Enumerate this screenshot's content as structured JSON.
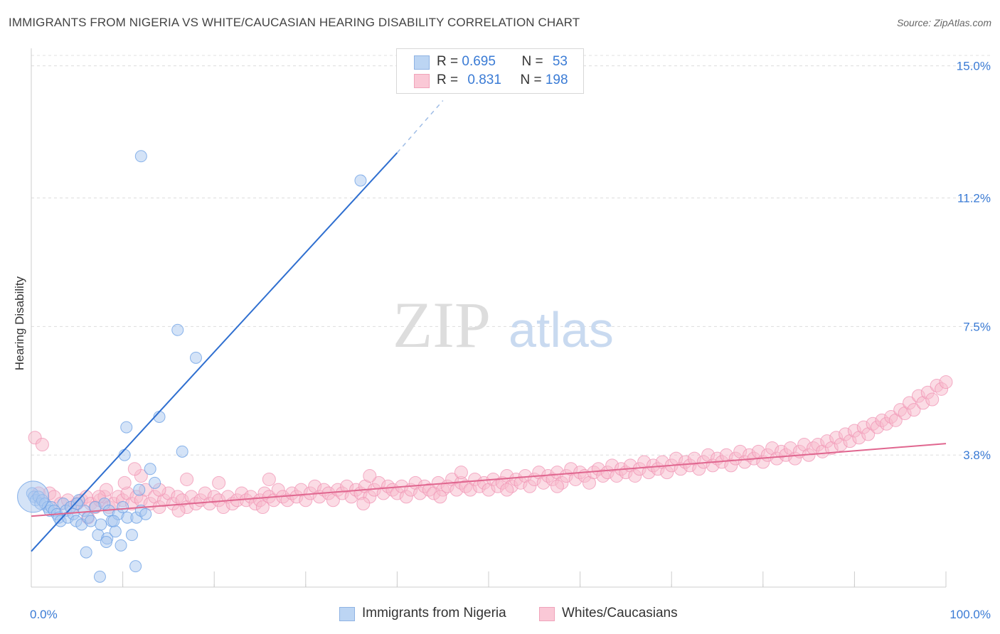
{
  "header": {
    "title": "IMMIGRANTS FROM NIGERIA VS WHITE/CAUCASIAN HEARING DISABILITY CORRELATION CHART",
    "source": "Source: ZipAtlas.com"
  },
  "watermark": {
    "part1": "ZIP",
    "part2": "atlas"
  },
  "legend": {
    "rows": [
      {
        "r_label": "R = ",
        "r_value": "0.695",
        "n_label": "N = ",
        "n_value": "53",
        "color": "#a9c8f0"
      },
      {
        "r_label": "R = ",
        "r_value": "0.831",
        "n_label": "N = ",
        "n_value": "198",
        "color": "#f7b9cb"
      }
    ]
  },
  "bottom_legend": {
    "items": [
      {
        "label": "Immigrants from Nigeria",
        "color": "#a9c8f0"
      },
      {
        "label": "Whites/Caucasians",
        "color": "#f7b9cb"
      }
    ]
  },
  "chart_data": {
    "type": "scatter",
    "title": "IMMIGRANTS FROM NIGERIA VS WHITE/CAUCASIAN HEARING DISABILITY CORRELATION CHART",
    "xlabel": "",
    "ylabel": "Hearing Disability",
    "xlim": [
      0,
      100
    ],
    "ylim": [
      0,
      15.3
    ],
    "x_tick_labels": [
      "0.0%",
      "100.0%"
    ],
    "y_ticks": [
      3.8,
      7.5,
      11.2,
      15.0
    ],
    "y_tick_labels": [
      "3.8%",
      "7.5%",
      "11.2%",
      "15.0%"
    ],
    "grid": true,
    "legend_position": "top-center",
    "series": [
      {
        "name": "Immigrants from Nigeria",
        "color": "#6fa3e6",
        "fill": "#a9c8f0",
        "trend": {
          "x": [
            0,
            40
          ],
          "y": [
            1.03,
            12.5
          ],
          "dashed_extension_to": [
            45,
            14.0
          ],
          "color": "#2f6fd0"
        },
        "points": [
          [
            0.1,
            2.7
          ],
          [
            0.3,
            2.6
          ],
          [
            0.5,
            2.5
          ],
          [
            0.8,
            2.6
          ],
          [
            1.0,
            2.4
          ],
          [
            1.2,
            2.5
          ],
          [
            1.5,
            2.4
          ],
          [
            1.8,
            2.3
          ],
          [
            2.0,
            2.2
          ],
          [
            2.2,
            2.3
          ],
          [
            2.5,
            2.2
          ],
          [
            2.8,
            2.1
          ],
          [
            3.0,
            2.0
          ],
          [
            3.2,
            1.9
          ],
          [
            3.5,
            2.4
          ],
          [
            3.8,
            2.2
          ],
          [
            4.0,
            2.0
          ],
          [
            4.3,
            2.3
          ],
          [
            4.6,
            2.1
          ],
          [
            4.9,
            1.9
          ],
          [
            5.2,
            2.5
          ],
          [
            5.5,
            1.8
          ],
          [
            5.8,
            2.2
          ],
          [
            6.2,
            2.0
          ],
          [
            6.5,
            1.9
          ],
          [
            7.0,
            2.3
          ],
          [
            7.3,
            1.5
          ],
          [
            7.6,
            1.8
          ],
          [
            8.0,
            2.4
          ],
          [
            8.3,
            1.4
          ],
          [
            8.5,
            2.2
          ],
          [
            8.8,
            1.9
          ],
          [
            9.2,
            1.6
          ],
          [
            9.5,
            2.1
          ],
          [
            9.8,
            1.2
          ],
          [
            10.0,
            2.3
          ],
          [
            10.5,
            2.0
          ],
          [
            11.0,
            1.5
          ],
          [
            11.5,
            2.0
          ],
          [
            12.0,
            2.2
          ],
          [
            6.0,
            1.0
          ],
          [
            7.5,
            0.3
          ],
          [
            8.2,
            1.3
          ],
          [
            9.0,
            1.9
          ],
          [
            10.2,
            3.8
          ],
          [
            10.4,
            4.6
          ],
          [
            11.8,
            2.8
          ],
          [
            12.5,
            2.1
          ],
          [
            13.5,
            3.0
          ],
          [
            16.5,
            3.9
          ],
          [
            18.0,
            6.6
          ],
          [
            14.0,
            4.9
          ],
          [
            11.4,
            0.6
          ],
          [
            12.0,
            12.4
          ],
          [
            16.0,
            7.4
          ],
          [
            36.0,
            11.7
          ],
          [
            13.0,
            3.4
          ],
          [
            5.0,
            2.4
          ]
        ],
        "large_point": [
          0.2,
          2.6
        ]
      },
      {
        "name": "Whites/Caucasians",
        "color": "#ef8fb0",
        "fill": "#f7b9cb",
        "trend": {
          "x": [
            0,
            100
          ],
          "y": [
            2.04,
            4.13
          ],
          "color": "#e0668f"
        },
        "points": [
          [
            0.4,
            4.3
          ],
          [
            1.2,
            4.1
          ],
          [
            2.0,
            2.7
          ],
          [
            2.5,
            2.6
          ],
          [
            3.2,
            2.4
          ],
          [
            4.0,
            2.5
          ],
          [
            4.5,
            2.3
          ],
          [
            5.0,
            2.4
          ],
          [
            5.5,
            2.5
          ],
          [
            6.0,
            2.6
          ],
          [
            6.5,
            2.4
          ],
          [
            7.0,
            2.3
          ],
          [
            7.5,
            2.5
          ],
          [
            8.0,
            2.6
          ],
          [
            8.5,
            2.3
          ],
          [
            9.0,
            2.4
          ],
          [
            9.5,
            2.6
          ],
          [
            10.0,
            2.5
          ],
          [
            10.5,
            2.7
          ],
          [
            11.0,
            2.4
          ],
          [
            11.5,
            2.6
          ],
          [
            12.0,
            2.5
          ],
          [
            12.5,
            2.8
          ],
          [
            13.0,
            2.4
          ],
          [
            13.5,
            2.6
          ],
          [
            14.0,
            2.3
          ],
          [
            14.5,
            2.5
          ],
          [
            15.0,
            2.7
          ],
          [
            15.5,
            2.4
          ],
          [
            16.0,
            2.6
          ],
          [
            16.5,
            2.5
          ],
          [
            17.0,
            2.3
          ],
          [
            17.5,
            2.6
          ],
          [
            18.0,
            2.4
          ],
          [
            18.5,
            2.5
          ],
          [
            19.0,
            2.7
          ],
          [
            19.5,
            2.4
          ],
          [
            20.0,
            2.6
          ],
          [
            20.5,
            2.5
          ],
          [
            21.0,
            2.3
          ],
          [
            21.5,
            2.6
          ],
          [
            22.0,
            2.4
          ],
          [
            22.5,
            2.5
          ],
          [
            23.0,
            2.7
          ],
          [
            23.5,
            2.5
          ],
          [
            24.0,
            2.6
          ],
          [
            24.5,
            2.4
          ],
          [
            25.0,
            2.5
          ],
          [
            25.5,
            2.7
          ],
          [
            26.0,
            2.6
          ],
          [
            26.5,
            2.5
          ],
          [
            27.0,
            2.8
          ],
          [
            27.5,
            2.6
          ],
          [
            28.0,
            2.5
          ],
          [
            28.5,
            2.7
          ],
          [
            29.0,
            2.6
          ],
          [
            29.5,
            2.8
          ],
          [
            30.0,
            2.5
          ],
          [
            30.5,
            2.7
          ],
          [
            31.0,
            2.9
          ],
          [
            31.5,
            2.6
          ],
          [
            32.0,
            2.8
          ],
          [
            32.5,
            2.7
          ],
          [
            33.0,
            2.5
          ],
          [
            33.5,
            2.8
          ],
          [
            34.0,
            2.7
          ],
          [
            34.5,
            2.9
          ],
          [
            35.0,
            2.6
          ],
          [
            35.5,
            2.8
          ],
          [
            36.0,
            2.7
          ],
          [
            36.5,
            2.9
          ],
          [
            37.0,
            2.6
          ],
          [
            37.5,
            2.8
          ],
          [
            38.0,
            3.0
          ],
          [
            38.5,
            2.7
          ],
          [
            39.0,
            2.9
          ],
          [
            39.5,
            2.8
          ],
          [
            40.0,
            2.7
          ],
          [
            40.5,
            2.9
          ],
          [
            41.0,
            2.6
          ],
          [
            41.5,
            2.8
          ],
          [
            42.0,
            3.0
          ],
          [
            42.5,
            2.7
          ],
          [
            43.0,
            2.9
          ],
          [
            43.5,
            2.8
          ],
          [
            44.0,
            2.7
          ],
          [
            44.5,
            3.0
          ],
          [
            45.0,
            2.8
          ],
          [
            45.5,
            2.9
          ],
          [
            46.0,
            3.1
          ],
          [
            46.5,
            2.8
          ],
          [
            47.0,
            3.0
          ],
          [
            47.5,
            2.9
          ],
          [
            48.0,
            2.8
          ],
          [
            48.5,
            3.1
          ],
          [
            49.0,
            2.9
          ],
          [
            49.5,
            3.0
          ],
          [
            50.0,
            2.8
          ],
          [
            50.5,
            3.1
          ],
          [
            51.0,
            2.9
          ],
          [
            51.5,
            3.0
          ],
          [
            52.0,
            3.2
          ],
          [
            52.5,
            2.9
          ],
          [
            53.0,
            3.1
          ],
          [
            53.5,
            3.0
          ],
          [
            54.0,
            3.2
          ],
          [
            54.5,
            2.9
          ],
          [
            55.0,
            3.1
          ],
          [
            55.5,
            3.3
          ],
          [
            56.0,
            3.0
          ],
          [
            56.5,
            3.2
          ],
          [
            57.0,
            3.1
          ],
          [
            57.5,
            3.3
          ],
          [
            58.0,
            3.0
          ],
          [
            58.5,
            3.2
          ],
          [
            59.0,
            3.4
          ],
          [
            59.5,
            3.1
          ],
          [
            60.0,
            3.3
          ],
          [
            60.5,
            3.2
          ],
          [
            61.0,
            3.0
          ],
          [
            61.5,
            3.3
          ],
          [
            62.0,
            3.4
          ],
          [
            62.5,
            3.2
          ],
          [
            63.0,
            3.3
          ],
          [
            63.5,
            3.5
          ],
          [
            64.0,
            3.2
          ],
          [
            64.5,
            3.4
          ],
          [
            65.0,
            3.3
          ],
          [
            65.5,
            3.5
          ],
          [
            66.0,
            3.2
          ],
          [
            66.5,
            3.4
          ],
          [
            67.0,
            3.6
          ],
          [
            67.5,
            3.3
          ],
          [
            68.0,
            3.5
          ],
          [
            68.5,
            3.4
          ],
          [
            69.0,
            3.6
          ],
          [
            69.5,
            3.3
          ],
          [
            70.0,
            3.5
          ],
          [
            70.5,
            3.7
          ],
          [
            71.0,
            3.4
          ],
          [
            71.5,
            3.6
          ],
          [
            72.0,
            3.5
          ],
          [
            72.5,
            3.7
          ],
          [
            73.0,
            3.4
          ],
          [
            73.5,
            3.6
          ],
          [
            74.0,
            3.8
          ],
          [
            74.5,
            3.5
          ],
          [
            75.0,
            3.7
          ],
          [
            75.5,
            3.6
          ],
          [
            76.0,
            3.8
          ],
          [
            76.5,
            3.5
          ],
          [
            77.0,
            3.7
          ],
          [
            77.5,
            3.9
          ],
          [
            78.0,
            3.6
          ],
          [
            78.5,
            3.8
          ],
          [
            79.0,
            3.7
          ],
          [
            79.5,
            3.9
          ],
          [
            80.0,
            3.6
          ],
          [
            80.5,
            3.8
          ],
          [
            81.0,
            4.0
          ],
          [
            81.5,
            3.7
          ],
          [
            82.0,
            3.9
          ],
          [
            82.5,
            3.8
          ],
          [
            83.0,
            4.0
          ],
          [
            83.5,
            3.7
          ],
          [
            84.0,
            3.9
          ],
          [
            84.5,
            4.1
          ],
          [
            85.0,
            3.8
          ],
          [
            85.5,
            4.0
          ],
          [
            86.0,
            4.1
          ],
          [
            86.5,
            3.9
          ],
          [
            87.0,
            4.2
          ],
          [
            87.5,
            4.0
          ],
          [
            88.0,
            4.3
          ],
          [
            88.5,
            4.1
          ],
          [
            89.0,
            4.4
          ],
          [
            89.5,
            4.2
          ],
          [
            90.0,
            4.5
          ],
          [
            90.5,
            4.3
          ],
          [
            91.0,
            4.6
          ],
          [
            91.5,
            4.4
          ],
          [
            92.0,
            4.7
          ],
          [
            92.5,
            4.6
          ],
          [
            93.0,
            4.8
          ],
          [
            93.5,
            4.7
          ],
          [
            94.0,
            4.9
          ],
          [
            94.5,
            4.8
          ],
          [
            95.0,
            5.1
          ],
          [
            95.5,
            5.0
          ],
          [
            96.0,
            5.3
          ],
          [
            96.5,
            5.1
          ],
          [
            97.0,
            5.5
          ],
          [
            97.5,
            5.3
          ],
          [
            98.0,
            5.6
          ],
          [
            98.5,
            5.4
          ],
          [
            99.0,
            5.8
          ],
          [
            99.5,
            5.7
          ],
          [
            100.0,
            5.9
          ],
          [
            10.2,
            3.0
          ],
          [
            12.0,
            3.2
          ],
          [
            14.0,
            2.8
          ],
          [
            17.0,
            3.1
          ],
          [
            20.5,
            3.0
          ],
          [
            26.0,
            3.1
          ],
          [
            37.0,
            3.2
          ],
          [
            47.0,
            3.3
          ],
          [
            52.0,
            2.8
          ],
          [
            57.5,
            2.9
          ],
          [
            6.2,
            2.0
          ],
          [
            8.2,
            2.8
          ],
          [
            11.3,
            3.4
          ],
          [
            7.4,
            2.6
          ],
          [
            16.1,
            2.2
          ],
          [
            25.3,
            2.3
          ],
          [
            36.3,
            2.4
          ],
          [
            44.7,
            2.6
          ],
          [
            0.8,
            2.7
          ]
        ]
      }
    ]
  }
}
